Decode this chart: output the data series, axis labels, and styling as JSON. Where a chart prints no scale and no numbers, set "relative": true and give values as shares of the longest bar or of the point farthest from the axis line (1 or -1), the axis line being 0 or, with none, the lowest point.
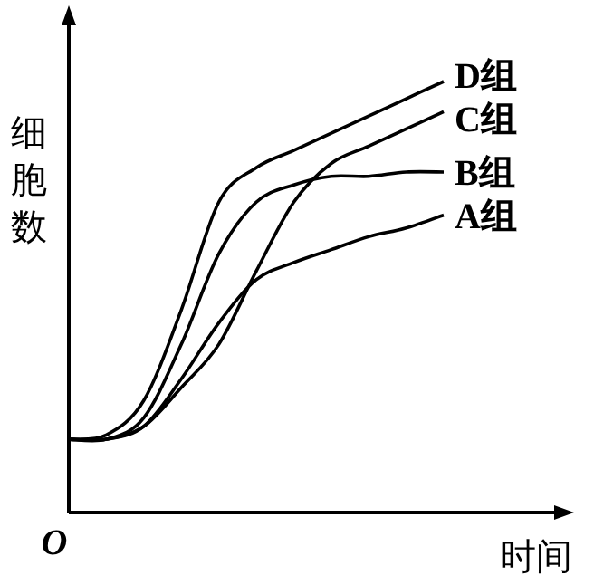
{
  "chart_data": {
    "type": "line",
    "relative": true,
    "xlabel": "时间",
    "ylabel": "细胞数",
    "annotations": [
      "O"
    ],
    "marker": "none",
    "line_style": "solid",
    "categories": [
      null,
      null,
      null,
      null,
      null,
      null,
      null,
      null,
      null,
      null,
      null
    ],
    "series": [
      {
        "name": "D组",
        "color": "#000000",
        "values": [
          0.17,
          0.18,
          0.26,
          0.47,
          0.72,
          0.8,
          0.84,
          0.88,
          0.92,
          0.96,
          1.0
        ]
      },
      {
        "name": "C组",
        "color": "#000000",
        "values": [
          0.17,
          0.17,
          0.2,
          0.29,
          0.39,
          0.56,
          0.72,
          0.81,
          0.85,
          0.89,
          0.93
        ]
      },
      {
        "name": "B组",
        "color": "#000000",
        "values": [
          0.17,
          0.17,
          0.22,
          0.39,
          0.6,
          0.72,
          0.76,
          0.78,
          0.78,
          0.79,
          0.79
        ]
      },
      {
        "name": "A组",
        "color": "#000000",
        "values": [
          0.17,
          0.17,
          0.2,
          0.31,
          0.44,
          0.54,
          0.58,
          0.61,
          0.64,
          0.66,
          0.69
        ]
      }
    ]
  }
}
